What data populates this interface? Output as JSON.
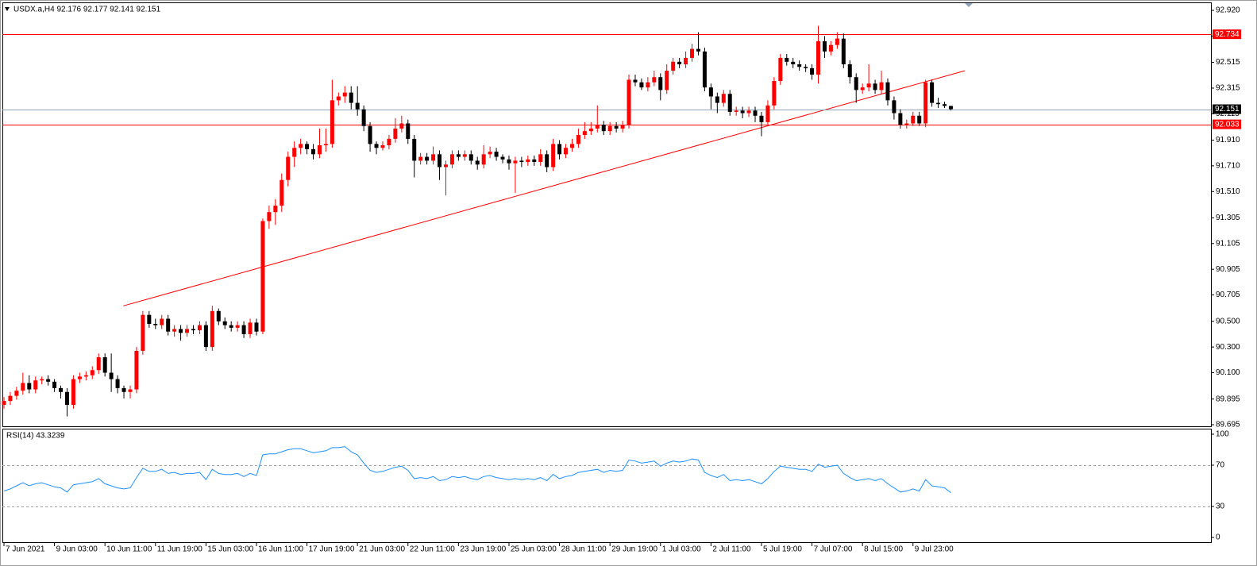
{
  "chart_data": [
    {
      "type": "candlestick",
      "header": "USDX.a,H4  92.176 92.177 92.141 92.151",
      "open": [
        89.85,
        89.88,
        89.92,
        89.96,
        90.02,
        89.97,
        90.04,
        90.05,
        90.03,
        89.98,
        89.95,
        89.85,
        90.05,
        90.07,
        90.08,
        90.12,
        90.22,
        90.1,
        90.05,
        89.98,
        89.95,
        89.97,
        90.27,
        90.55,
        90.48,
        90.47,
        90.52,
        90.42,
        90.44,
        90.41,
        90.44,
        90.43,
        90.47,
        90.3,
        90.58,
        90.5,
        90.47,
        90.45,
        90.47,
        90.4,
        90.49,
        90.42,
        91.28,
        91.35,
        91.4,
        91.6,
        91.78,
        91.85,
        91.88,
        91.84,
        91.8,
        91.87,
        91.88,
        92.22,
        92.25,
        92.28,
        92.2,
        92.15,
        92.02,
        91.88,
        91.85,
        91.87,
        91.92,
        92.0,
        92.04,
        91.92,
        91.75,
        91.78,
        91.75,
        91.8,
        91.7,
        91.72,
        91.8,
        91.78,
        91.8,
        91.75,
        91.72,
        91.8,
        91.82,
        91.78,
        91.76,
        91.73,
        91.75,
        91.74,
        91.76,
        91.74,
        91.8,
        91.7,
        91.88,
        91.8,
        91.85,
        91.88,
        91.95,
        91.98,
        92.0,
        92.03,
        91.98,
        92.02,
        92.0,
        92.03,
        92.38,
        92.36,
        92.32,
        92.36,
        92.4,
        92.3,
        92.45,
        92.52,
        92.5,
        92.55,
        92.62,
        92.6,
        92.32,
        92.25,
        92.2,
        92.27,
        92.13,
        92.14,
        92.12,
        92.14,
        92.1,
        92.05,
        92.18,
        92.37,
        92.55,
        92.52,
        92.5,
        92.48,
        92.47,
        92.42,
        92.68,
        92.6,
        92.65,
        92.7,
        92.5,
        92.4,
        92.3,
        92.32,
        92.35,
        92.3,
        92.36,
        92.22,
        92.12,
        92.03,
        92.04,
        92.1,
        92.04,
        92.36,
        92.2,
        92.19,
        92.176
      ],
      "high": [
        89.91,
        89.95,
        89.99,
        90.1,
        90.08,
        90.07,
        90.07,
        90.08,
        90.05,
        90.0,
        89.98,
        90.08,
        90.1,
        90.11,
        90.15,
        90.25,
        90.25,
        90.25,
        90.08,
        90.0,
        90.0,
        90.3,
        90.58,
        90.58,
        90.52,
        90.55,
        90.55,
        90.47,
        90.47,
        90.47,
        90.47,
        90.5,
        90.5,
        90.62,
        90.6,
        90.53,
        90.5,
        90.5,
        90.5,
        90.52,
        90.52,
        91.3,
        91.4,
        91.45,
        91.65,
        91.82,
        91.9,
        91.92,
        91.9,
        91.88,
        92.0,
        92.0,
        92.38,
        92.28,
        92.33,
        92.33,
        92.33,
        92.18,
        92.05,
        91.9,
        91.9,
        91.95,
        92.08,
        92.1,
        92.07,
        91.95,
        91.81,
        91.81,
        91.86,
        91.83,
        91.75,
        91.83,
        91.83,
        91.83,
        91.83,
        91.78,
        91.87,
        91.86,
        91.85,
        91.8,
        91.79,
        91.78,
        91.78,
        91.79,
        91.79,
        91.84,
        91.83,
        91.92,
        91.91,
        91.88,
        91.92,
        92.0,
        92.05,
        92.05,
        92.18,
        92.06,
        92.05,
        92.05,
        92.06,
        92.42,
        92.42,
        92.39,
        92.4,
        92.45,
        92.43,
        92.5,
        92.55,
        92.55,
        92.6,
        92.66,
        92.75,
        92.63,
        92.35,
        92.28,
        92.3,
        92.3,
        92.17,
        92.17,
        92.17,
        92.17,
        92.13,
        92.22,
        92.4,
        92.58,
        92.58,
        92.55,
        92.53,
        92.5,
        92.5,
        92.8,
        92.72,
        92.68,
        92.75,
        92.74,
        92.53,
        92.43,
        92.35,
        92.5,
        92.38,
        92.45,
        92.39,
        92.25,
        92.15,
        92.07,
        92.13,
        92.13,
        92.38,
        92.38,
        92.24,
        92.21,
        92.177
      ],
      "low": [
        89.82,
        89.85,
        89.89,
        89.93,
        89.94,
        89.94,
        90.01,
        90.0,
        89.95,
        89.9,
        89.76,
        89.82,
        90.02,
        90.04,
        90.05,
        90.09,
        90.07,
        89.95,
        89.94,
        89.9,
        89.9,
        89.94,
        90.24,
        90.45,
        90.44,
        90.44,
        90.39,
        90.38,
        90.35,
        90.38,
        90.4,
        90.4,
        90.27,
        90.27,
        90.47,
        90.44,
        90.42,
        90.42,
        90.37,
        90.37,
        90.39,
        90.4,
        91.22,
        91.25,
        91.35,
        91.55,
        91.7,
        91.8,
        91.8,
        91.76,
        91.77,
        91.82,
        91.85,
        92.18,
        92.2,
        92.15,
        92.1,
        91.98,
        91.82,
        91.8,
        91.83,
        91.84,
        91.89,
        91.97,
        91.88,
        91.62,
        91.72,
        91.72,
        91.72,
        91.6,
        91.48,
        91.69,
        91.75,
        91.75,
        91.72,
        91.68,
        91.69,
        91.77,
        91.75,
        91.73,
        91.68,
        91.5,
        91.7,
        91.71,
        91.71,
        91.71,
        91.66,
        91.67,
        91.76,
        91.77,
        91.82,
        91.85,
        91.92,
        91.95,
        91.97,
        91.95,
        91.95,
        91.97,
        91.97,
        92.0,
        92.33,
        92.3,
        92.29,
        92.33,
        92.22,
        92.27,
        92.42,
        92.47,
        92.47,
        92.52,
        92.57,
        92.29,
        92.15,
        92.12,
        92.17,
        92.1,
        92.1,
        92.08,
        92.09,
        92.05,
        91.94,
        92.02,
        92.15,
        92.34,
        92.49,
        92.47,
        92.45,
        92.44,
        92.38,
        92.35,
        92.55,
        92.57,
        92.62,
        92.47,
        92.35,
        92.2,
        92.27,
        92.29,
        92.27,
        92.27,
        92.18,
        92.07,
        92.0,
        92.0,
        92.02,
        92.02,
        92.01,
        92.17,
        92.16,
        92.16,
        92.141
      ],
      "close": [
        89.88,
        89.92,
        89.96,
        90.02,
        89.97,
        90.04,
        90.05,
        90.03,
        89.98,
        89.95,
        89.85,
        90.05,
        90.07,
        90.08,
        90.12,
        90.22,
        90.1,
        90.05,
        89.98,
        89.95,
        89.97,
        90.27,
        90.55,
        90.48,
        90.47,
        90.52,
        90.42,
        90.44,
        90.41,
        90.44,
        90.43,
        90.47,
        90.3,
        90.58,
        90.5,
        90.47,
        90.45,
        90.47,
        90.4,
        90.49,
        90.42,
        91.28,
        91.35,
        91.4,
        91.6,
        91.78,
        91.85,
        91.88,
        91.84,
        91.8,
        91.87,
        91.88,
        92.22,
        92.25,
        92.28,
        92.2,
        92.15,
        92.02,
        91.88,
        91.85,
        91.87,
        91.92,
        92.0,
        92.04,
        91.92,
        91.75,
        91.78,
        91.75,
        91.8,
        91.7,
        91.72,
        91.8,
        91.78,
        91.8,
        91.75,
        91.72,
        91.8,
        91.82,
        91.78,
        91.76,
        91.73,
        91.75,
        91.74,
        91.76,
        91.74,
        91.8,
        91.7,
        91.88,
        91.8,
        91.85,
        91.88,
        91.95,
        91.98,
        92.0,
        92.03,
        91.98,
        92.02,
        92.0,
        92.03,
        92.38,
        92.36,
        92.32,
        92.36,
        92.4,
        92.3,
        92.45,
        92.52,
        92.5,
        92.55,
        92.62,
        92.6,
        92.32,
        92.25,
        92.2,
        92.27,
        92.13,
        92.14,
        92.12,
        92.14,
        92.1,
        92.05,
        92.18,
        92.37,
        92.55,
        92.52,
        92.5,
        92.48,
        92.47,
        92.42,
        92.68,
        92.6,
        92.65,
        92.7,
        92.5,
        92.4,
        92.3,
        92.32,
        92.35,
        92.3,
        92.36,
        92.22,
        92.12,
        92.03,
        92.04,
        92.1,
        92.04,
        92.36,
        92.2,
        92.19,
        92.176,
        92.151
      ],
      "up_color": "#ff0000",
      "down_color": "#000000",
      "xlim": [
        -0.25,
        191.2
      ],
      "xticks": [
        {
          "value": 0,
          "label": "7 Jun 2021"
        },
        {
          "value": 8,
          "label": "9 Jun 03:00"
        },
        {
          "value": 16,
          "label": "10 Jun 11:00"
        },
        {
          "value": 24,
          "label": "11 Jun 19:00"
        },
        {
          "value": 32,
          "label": "15 Jun 03:00"
        },
        {
          "value": 40,
          "label": "16 Jun 11:00"
        },
        {
          "value": 48,
          "label": "17 Jun 19:00"
        },
        {
          "value": 56,
          "label": "21 Jun 03:00"
        },
        {
          "value": 64,
          "label": "22 Jun 11:00"
        },
        {
          "value": 72,
          "label": "23 Jun 19:00"
        },
        {
          "value": 80,
          "label": "25 Jun 03:00"
        },
        {
          "value": 88,
          "label": "28 Jun 11:00"
        },
        {
          "value": 96,
          "label": "29 Jun 19:00"
        },
        {
          "value": 104,
          "label": "1 Jul 03:00"
        },
        {
          "value": 112,
          "label": "2 Jul 11:00"
        },
        {
          "value": 120,
          "label": "5 Jul 19:00"
        },
        {
          "value": 128,
          "label": "7 Jul 07:00"
        },
        {
          "value": 136,
          "label": "8 Jul 15:00"
        },
        {
          "value": 144,
          "label": "9 Jul 23:00"
        }
      ],
      "ylim": [
        89.683,
        92.982
      ],
      "yticks": [
        {
          "value": 92.92,
          "label": "92.920"
        },
        {
          "value": 92.72,
          "label": "92.720"
        },
        92.515,
        92.315,
        92.115,
        {
          "value": 91.91,
          "label": "91.910"
        },
        {
          "value": 91.71,
          "label": "91.710"
        },
        {
          "value": 91.51,
          "label": "91.510"
        },
        91.305,
        91.105,
        90.905,
        90.705,
        {
          "value": 90.5,
          "label": "90.500"
        },
        {
          "value": 90.3,
          "label": "90.300"
        },
        {
          "value": 90.1,
          "label": "90.100"
        },
        89.895,
        89.695
      ],
      "hlines": [
        {
          "value": 92.734,
          "label": "92.734",
          "color": "#ff0000"
        },
        {
          "value": 92.151,
          "label": "92.151",
          "color": "#8fa4b8"
        },
        {
          "value": 92.033,
          "label": "92.033",
          "color": "#ff0000"
        }
      ],
      "trendline": {
        "x": [
          18.9,
          152.2
        ],
        "y": [
          90.62,
          92.45
        ],
        "color": "#ff0000"
      }
    },
    {
      "type": "line",
      "title": "RSI(14) 43.3239",
      "values": [
        45,
        47,
        50,
        53,
        50,
        52,
        53,
        51,
        49,
        48,
        44,
        51,
        52,
        53,
        54,
        57,
        52,
        50,
        48,
        47,
        48,
        58,
        67,
        64,
        64,
        66,
        62,
        63,
        61,
        62,
        62,
        63,
        56,
        66,
        62,
        61,
        61,
        62,
        59,
        62,
        60,
        80,
        81,
        81,
        83,
        85,
        86,
        86,
        84,
        82,
        83,
        84,
        87,
        87,
        88,
        83,
        80,
        72,
        65,
        63,
        64,
        66,
        68,
        69,
        65,
        57,
        58,
        57,
        59,
        55,
        56,
        59,
        58,
        59,
        57,
        56,
        59,
        60,
        58,
        57,
        56,
        57,
        56,
        57,
        56,
        58,
        55,
        61,
        57,
        59,
        60,
        63,
        64,
        65,
        66,
        63,
        65,
        64,
        65,
        75,
        74,
        72,
        73,
        74,
        69,
        72,
        74,
        73,
        74,
        76,
        75,
        63,
        60,
        58,
        61,
        55,
        56,
        55,
        56,
        54,
        52,
        57,
        64,
        69,
        68,
        67,
        66,
        66,
        64,
        71,
        68,
        69,
        70,
        62,
        58,
        55,
        56,
        57,
        55,
        57,
        52,
        48,
        44,
        45,
        47,
        45,
        56,
        50,
        49,
        48,
        43.3239
      ],
      "color": "#1e90ff",
      "ylim": [
        -4.6,
        104.6
      ],
      "yticks": [
        100,
        70,
        30,
        0
      ],
      "levels": [
        70,
        30
      ]
    }
  ]
}
